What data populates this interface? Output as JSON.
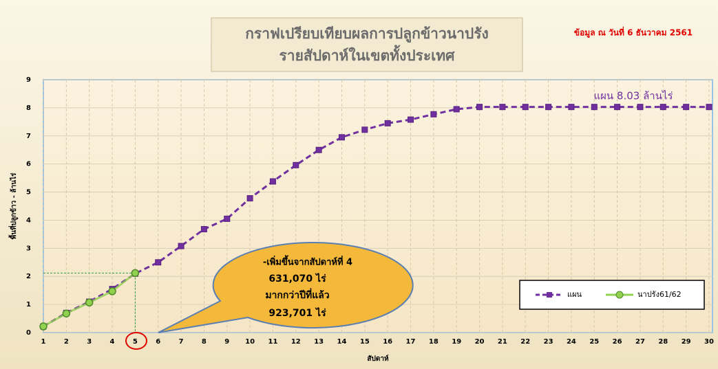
{
  "chart_data": {
    "type": "line",
    "title": "กราฟเปรียบเทียบผลการปลูกข้าวนาปรัง",
    "subtitle": "รายสัปดาห์ในเขตทั้งประเทศ",
    "date_note": "ข้อมูล ณ วันที่ 6 ธันวาคม 2561",
    "plan_note": "แผน  8.03 ล้านไร่",
    "callout": [
      "-เพิ่มขึ้นจากสัปดาห์ที่  4",
      "631,070  ไร่",
      "มากกว่าปีที่แล้ว",
      "923,701  ไร่"
    ],
    "x_label": "สัปดาห์",
    "y_label": "พื้นที่ปลูกข้าว - ล้านไร่",
    "x": [
      1,
      2,
      3,
      4,
      5,
      6,
      7,
      8,
      9,
      10,
      11,
      12,
      13,
      14,
      15,
      16,
      17,
      18,
      19,
      20,
      21,
      22,
      23,
      24,
      25,
      26,
      27,
      28,
      29,
      30
    ],
    "xlim": [
      1,
      30
    ],
    "xticks": [
      1,
      2,
      3,
      4,
      5,
      6,
      7,
      8,
      9,
      10,
      11,
      12,
      13,
      14,
      15,
      16,
      17,
      18,
      19,
      20,
      21,
      22,
      23,
      24,
      25,
      26,
      27,
      28,
      29,
      30
    ],
    "ylim": [
      0,
      9
    ],
    "yticks": [
      0,
      1,
      2,
      3,
      4,
      5,
      6,
      7,
      8,
      9
    ],
    "grid": true,
    "legend": "bottom-right",
    "series": [
      {
        "name": "แผน",
        "color": "#7030a0",
        "values": [
          0.22,
          0.7,
          1.1,
          1.55,
          2.1,
          2.5,
          3.08,
          3.68,
          4.05,
          4.78,
          5.38,
          5.96,
          6.5,
          6.95,
          7.22,
          7.45,
          7.58,
          7.77,
          7.95,
          8.03,
          8.03,
          8.03,
          8.03,
          8.03,
          8.03,
          8.03,
          8.03,
          8.03,
          8.03,
          8.03
        ]
      },
      {
        "name": "นาปรัง61/62",
        "color": "#92d050",
        "values": [
          0.22,
          0.68,
          1.07,
          1.47,
          2.12,
          null,
          null,
          null,
          null,
          null,
          null,
          null,
          null,
          null,
          null,
          null,
          null,
          null,
          null,
          null,
          null,
          null,
          null,
          null,
          null,
          null,
          null,
          null,
          null,
          null
        ]
      }
    ]
  }
}
